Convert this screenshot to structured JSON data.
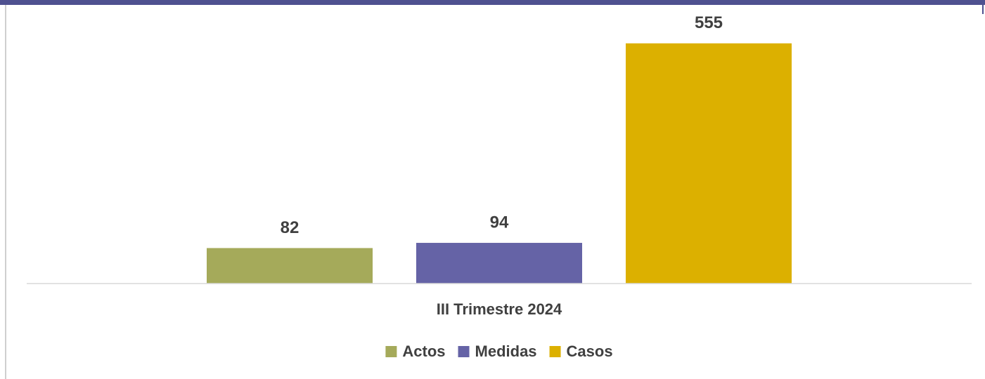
{
  "chart_data": {
    "type": "bar",
    "categories": [
      "III Trimestre 2024"
    ],
    "series": [
      {
        "name": "Actos",
        "color": "#a5aa5a",
        "values": [
          82
        ]
      },
      {
        "name": "Medidas",
        "color": "#6563a6",
        "values": [
          94
        ]
      },
      {
        "name": "Casos",
        "color": "#dcb000",
        "values": [
          555
        ]
      }
    ],
    "ylim": [
      0,
      600
    ],
    "grid": false,
    "legend": "bottom"
  }
}
